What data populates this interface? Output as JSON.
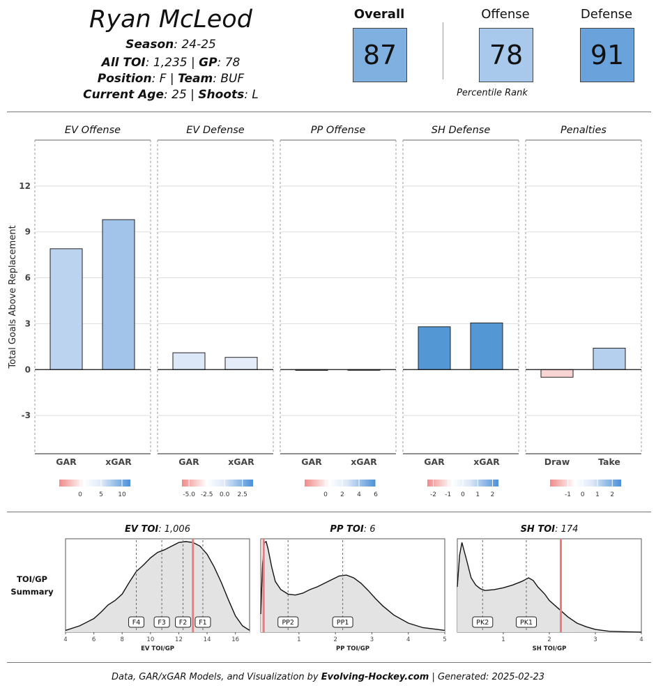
{
  "player": {
    "name": "Ryan McLeod",
    "season_label": "Season",
    "season_value": "24-25",
    "toi_label": "All TOI",
    "toi_value": "1,235",
    "gp_label": "GP",
    "gp_value": "78",
    "position_label": "Position",
    "position_value": "F",
    "team_label": "Team",
    "team_value": "BUF",
    "age_label": "Current Age",
    "age_value": "25",
    "shoots_label": "Shoots",
    "shoots_value": "L"
  },
  "ratings": [
    {
      "label": "Overall",
      "value": "87",
      "color": "#7fb0e0"
    },
    {
      "label": "Offense",
      "value": "78",
      "color": "#a8c8ec"
    },
    {
      "label": "Defense",
      "value": "91",
      "color": "#6aa3dc"
    }
  ],
  "percentile_caption": "Percentile Rank",
  "chart_data": [
    {
      "type": "bar",
      "ylabel": "Total Goals Above Replacement",
      "ylim": [
        -5.5,
        15
      ],
      "yticks": [
        -3,
        0,
        3,
        6,
        9,
        12
      ],
      "grid": true,
      "panels": [
        {
          "title": "EV Offense",
          "categories": [
            "GAR",
            "xGAR"
          ],
          "values": [
            7.9,
            9.8
          ],
          "colors": [
            "#bcd3ef",
            "#a3c4ea"
          ],
          "legend_ticks": [
            "0",
            "5",
            "10"
          ],
          "legend_tick_values": [
            0,
            5,
            10
          ],
          "legend_range": [
            -5,
            12
          ]
        },
        {
          "title": "EV Defense",
          "categories": [
            "GAR",
            "xGAR"
          ],
          "values": [
            1.1,
            0.8
          ],
          "colors": [
            "#dce8f7",
            "#e3ecf8"
          ],
          "legend_ticks": [
            "-5.0",
            "-2.5",
            "0.0",
            "2.5"
          ],
          "legend_tick_values": [
            -5,
            -2.5,
            0,
            2.5
          ],
          "legend_range": [
            -6,
            4
          ]
        },
        {
          "title": "PP Offense",
          "categories": [
            "GAR",
            "xGAR"
          ],
          "values": [
            -0.05,
            -0.02
          ],
          "colors": [
            "#f6d0d0",
            "#f8e0e0"
          ],
          "legend_ticks": [
            "0",
            "2",
            "4",
            "6"
          ],
          "legend_tick_values": [
            0,
            2,
            4,
            6
          ],
          "legend_range": [
            -2.5,
            6
          ]
        },
        {
          "title": "SH Defense",
          "categories": [
            "GAR",
            "xGAR"
          ],
          "values": [
            2.8,
            3.05
          ],
          "colors": [
            "#5497d5",
            "#5497d5"
          ],
          "legend_ticks": [
            "-2",
            "-1",
            "0",
            "1",
            "2"
          ],
          "legend_tick_values": [
            -2,
            -1,
            0,
            1,
            2
          ],
          "legend_range": [
            -2.4,
            2.4
          ]
        },
        {
          "title": "Penalties",
          "categories": [
            "Draw",
            "Take"
          ],
          "values": [
            -0.5,
            1.4
          ],
          "colors": [
            "#f9d4d4",
            "#b5cfee"
          ],
          "legend_ticks": [
            "-1",
            "0",
            "1",
            "2"
          ],
          "legend_tick_values": [
            -1,
            0,
            1,
            2
          ],
          "legend_range": [
            -2.2,
            2.6
          ]
        }
      ]
    },
    {
      "type": "area",
      "row_label_line1": "TOI/GP",
      "row_label_line2": "Summary",
      "panels": [
        {
          "title_label": "EV TOI",
          "title_value": "1,006",
          "xlabel": "EV TOI/GP",
          "xlim": [
            4,
            17
          ],
          "xticks": [
            4,
            6,
            8,
            10,
            12,
            14,
            16
          ],
          "density_x": [
            4,
            5,
            6,
            6.5,
            7,
            7.5,
            8,
            8.5,
            9,
            9.5,
            10,
            10.5,
            11,
            11.5,
            12,
            12.5,
            13,
            13.5,
            14,
            14.5,
            15,
            15.5,
            16,
            16.5,
            17
          ],
          "density_y": [
            0.02,
            0.07,
            0.15,
            0.22,
            0.3,
            0.35,
            0.42,
            0.55,
            0.67,
            0.74,
            0.82,
            0.88,
            0.91,
            0.95,
            0.99,
            1.0,
            0.99,
            0.95,
            0.86,
            0.72,
            0.55,
            0.36,
            0.18,
            0.07,
            0.02
          ],
          "markers": [
            {
              "label": "F4",
              "x": 9.0
            },
            {
              "label": "F3",
              "x": 10.8
            },
            {
              "label": "F2",
              "x": 12.3
            },
            {
              "label": "F1",
              "x": 13.7
            }
          ],
          "player_x": 13.0
        },
        {
          "title_label": "PP TOI",
          "title_value": "6",
          "xlabel": "PP TOI/GP",
          "xlim": [
            -0.05,
            5
          ],
          "xticks": [
            1,
            2,
            3,
            4,
            5
          ],
          "density_x": [
            -0.05,
            0.0,
            0.05,
            0.1,
            0.15,
            0.25,
            0.35,
            0.5,
            0.7,
            0.9,
            1.1,
            1.3,
            1.5,
            1.7,
            1.9,
            2.1,
            2.3,
            2.5,
            2.7,
            2.9,
            3.1,
            3.3,
            3.6,
            4.0,
            4.4,
            4.8,
            5.0
          ],
          "density_y": [
            0.2,
            0.75,
            0.99,
            1.0,
            0.92,
            0.72,
            0.56,
            0.47,
            0.42,
            0.41,
            0.43,
            0.47,
            0.5,
            0.54,
            0.58,
            0.62,
            0.63,
            0.6,
            0.54,
            0.46,
            0.37,
            0.29,
            0.19,
            0.1,
            0.05,
            0.03,
            0.02
          ],
          "markers": [
            {
              "label": "PP2",
              "x": 0.7
            },
            {
              "label": "PP1",
              "x": 2.2
            }
          ],
          "player_x": 0.03
        },
        {
          "title_label": "SH TOI",
          "title_value": "174",
          "xlabel": "SH TOI/GP",
          "xlim": [
            0,
            4
          ],
          "xticks": [
            1,
            2,
            3,
            4
          ],
          "density_x": [
            0,
            0.05,
            0.1,
            0.2,
            0.3,
            0.4,
            0.5,
            0.6,
            0.8,
            1.0,
            1.2,
            1.4,
            1.55,
            1.65,
            1.75,
            1.9,
            2.0,
            2.2,
            2.4,
            2.6,
            2.8,
            3.0,
            3.3,
            3.6,
            4.0
          ],
          "density_y": [
            0.5,
            0.85,
            0.99,
            0.8,
            0.6,
            0.52,
            0.48,
            0.46,
            0.47,
            0.49,
            0.52,
            0.56,
            0.6,
            0.57,
            0.5,
            0.42,
            0.35,
            0.26,
            0.17,
            0.1,
            0.06,
            0.03,
            0.01,
            0.005,
            0.0
          ],
          "markers": [
            {
              "label": "PK2",
              "x": 0.55
            },
            {
              "label": "PK1",
              "x": 1.5
            }
          ],
          "player_x": 2.25
        }
      ]
    }
  ],
  "footer": {
    "prefix": "Data, GAR/xGAR Models, and Visualization by",
    "brand": "Evolving-Hockey.com",
    "generated": "| Generated: 2025-02-23"
  }
}
